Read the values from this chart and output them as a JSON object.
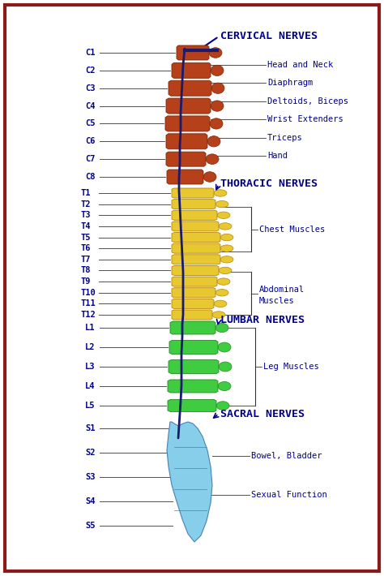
{
  "bg_color": "#ffffff",
  "border_color": "#8b1a1a",
  "text_color": "#00008b",
  "cervical_color": "#b5401a",
  "thoracic_color": "#e8c830",
  "lumbar_color": "#40cc40",
  "sacral_color": "#87ceeb",
  "cervical_labels": [
    "C1",
    "C2",
    "C3",
    "C4",
    "C5",
    "C6",
    "C7",
    "C8"
  ],
  "thoracic_labels": [
    "T1",
    "T2",
    "T3",
    "T4",
    "T5",
    "T6",
    "T7",
    "T8",
    "T9",
    "T10",
    "T11",
    "T12"
  ],
  "lumbar_labels": [
    "L1",
    "L2",
    "L3",
    "L4",
    "L5"
  ],
  "sacral_labels": [
    "S1",
    "S2",
    "S3",
    "S4",
    "S5"
  ],
  "cervical_header": "CERVICAL NERVES",
  "thoracic_header": "THORACIC NERVES",
  "lumbar_header": "LUMBAR NERVES",
  "sacral_header": "SACRAL NERVES",
  "cervical_annotations": [
    "Head and Neck",
    "Diaphragm",
    "Deltoids, Biceps",
    "Wrist Extenders",
    "Triceps",
    "Hand"
  ],
  "thoracic_annotations": [
    "Chest Muscles",
    "Abdominal\nMuscles"
  ],
  "lumbar_annotations": [
    "Leg Muscles"
  ],
  "sacral_annotations": [
    "Bowel, Bladder",
    "Sexual Function"
  ]
}
